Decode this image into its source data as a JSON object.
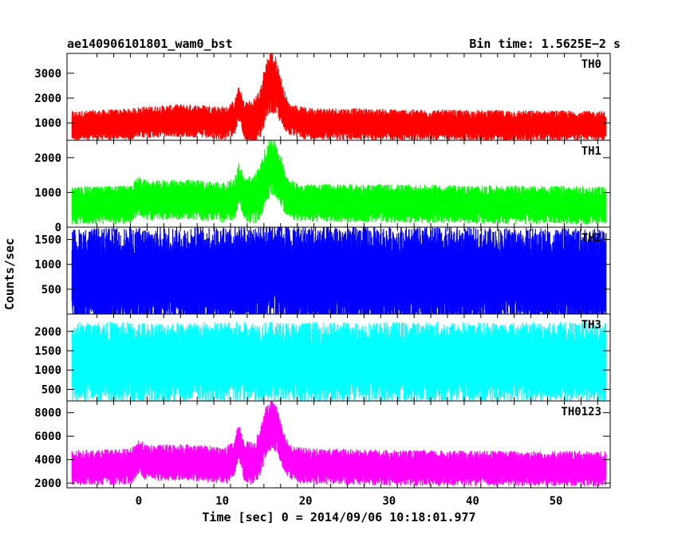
{
  "header": {
    "left": "ae140906101801_wam0_bst",
    "right": "Bin time: 1.5625E−2 s"
  },
  "axes": {
    "ylabel": "Counts/sec",
    "xlabel": "Time [sec] 0 = 2014/09/06 10:18:01.977"
  },
  "chart_data": {
    "type": "line",
    "x_range": [
      -8.6,
      56.5
    ],
    "x_ticks": [
      0,
      10,
      20,
      30,
      40,
      50
    ],
    "bin_time_s": 0.015625,
    "series": [
      {
        "name": "TH0",
        "color": "#ff0000",
        "ylim": [
          300,
          3800
        ],
        "y_ticks": [
          1000,
          2000,
          3000
        ],
        "profile": [
          [
            -8,
            880
          ],
          [
            -1,
            950
          ],
          [
            0,
            1020
          ],
          [
            2,
            1050
          ],
          [
            5,
            1100
          ],
          [
            8,
            1050
          ],
          [
            10.5,
            980
          ],
          [
            11.5,
            1250
          ],
          [
            12,
            1800
          ],
          [
            12.6,
            1100
          ],
          [
            13.5,
            1000
          ],
          [
            14.5,
            1250
          ],
          [
            15.2,
            2300
          ],
          [
            15.8,
            2700
          ],
          [
            16.5,
            2500
          ],
          [
            17.2,
            1700
          ],
          [
            18,
            1150
          ],
          [
            20,
            980
          ],
          [
            30,
            930
          ],
          [
            40,
            900
          ],
          [
            50,
            900
          ],
          [
            56,
            880
          ]
        ],
        "spread": [
          [
            -8,
            600
          ],
          [
            12,
            700
          ],
          [
            16,
            1300
          ],
          [
            18,
            650
          ],
          [
            56,
            600
          ]
        ]
      },
      {
        "name": "TH1",
        "color": "#00ff00",
        "ylim": [
          0,
          2500
        ],
        "y_ticks": [
          0,
          1000,
          2000
        ],
        "profile": [
          [
            -8,
            620
          ],
          [
            -1,
            650
          ],
          [
            0,
            900
          ],
          [
            1,
            760
          ],
          [
            5,
            800
          ],
          [
            8,
            760
          ],
          [
            10.5,
            700
          ],
          [
            11.5,
            850
          ],
          [
            12,
            1300
          ],
          [
            12.6,
            820
          ],
          [
            13.5,
            780
          ],
          [
            14.5,
            950
          ],
          [
            15.3,
            1600
          ],
          [
            16,
            1800
          ],
          [
            16.8,
            1500
          ],
          [
            17.5,
            1000
          ],
          [
            18.5,
            760
          ],
          [
            20,
            700
          ],
          [
            30,
            680
          ],
          [
            40,
            650
          ],
          [
            50,
            640
          ],
          [
            56,
            620
          ]
        ],
        "spread": [
          [
            -8,
            550
          ],
          [
            12,
            600
          ],
          [
            16,
            900
          ],
          [
            18,
            560
          ],
          [
            56,
            550
          ]
        ]
      },
      {
        "name": "TH2",
        "color": "#0000ff",
        "ylim": [
          0,
          1750
        ],
        "y_ticks": [
          500,
          1000,
          1500
        ],
        "profile": [
          [
            -8,
            720
          ],
          [
            14,
            760
          ],
          [
            16,
            900
          ],
          [
            18,
            760
          ],
          [
            56,
            720
          ]
        ],
        "spread": [
          [
            -8,
            1000
          ],
          [
            16,
            1050
          ],
          [
            56,
            1000
          ]
        ]
      },
      {
        "name": "TH3",
        "color": "#00ffff",
        "ylim": [
          200,
          2450
        ],
        "y_ticks": [
          500,
          1000,
          1500,
          2000
        ],
        "profile": [
          [
            -8,
            1200
          ],
          [
            56,
            1200
          ]
        ],
        "spread": [
          [
            -8,
            1050
          ],
          [
            56,
            1050
          ]
        ]
      },
      {
        "name": "TH0123",
        "color": "#ff00ff",
        "ylim": [
          1600,
          9000
        ],
        "y_ticks": [
          2000,
          4000,
          6000,
          8000
        ],
        "profile": [
          [
            -8,
            3300
          ],
          [
            -1,
            3400
          ],
          [
            0,
            4200
          ],
          [
            1,
            3700
          ],
          [
            5,
            3800
          ],
          [
            8,
            3650
          ],
          [
            10.5,
            3500
          ],
          [
            11.5,
            4200
          ],
          [
            12,
            5700
          ],
          [
            12.6,
            3900
          ],
          [
            13.5,
            3700
          ],
          [
            14.5,
            4400
          ],
          [
            15.3,
            6500
          ],
          [
            16,
            7200
          ],
          [
            16.8,
            6200
          ],
          [
            17.5,
            4500
          ],
          [
            18.5,
            3600
          ],
          [
            20,
            3450
          ],
          [
            30,
            3300
          ],
          [
            40,
            3250
          ],
          [
            50,
            3250
          ],
          [
            56,
            3200
          ]
        ],
        "spread": [
          [
            -8,
            1500
          ],
          [
            12,
            1600
          ],
          [
            16,
            2300
          ],
          [
            18,
            1550
          ],
          [
            56,
            1500
          ]
        ]
      }
    ]
  }
}
